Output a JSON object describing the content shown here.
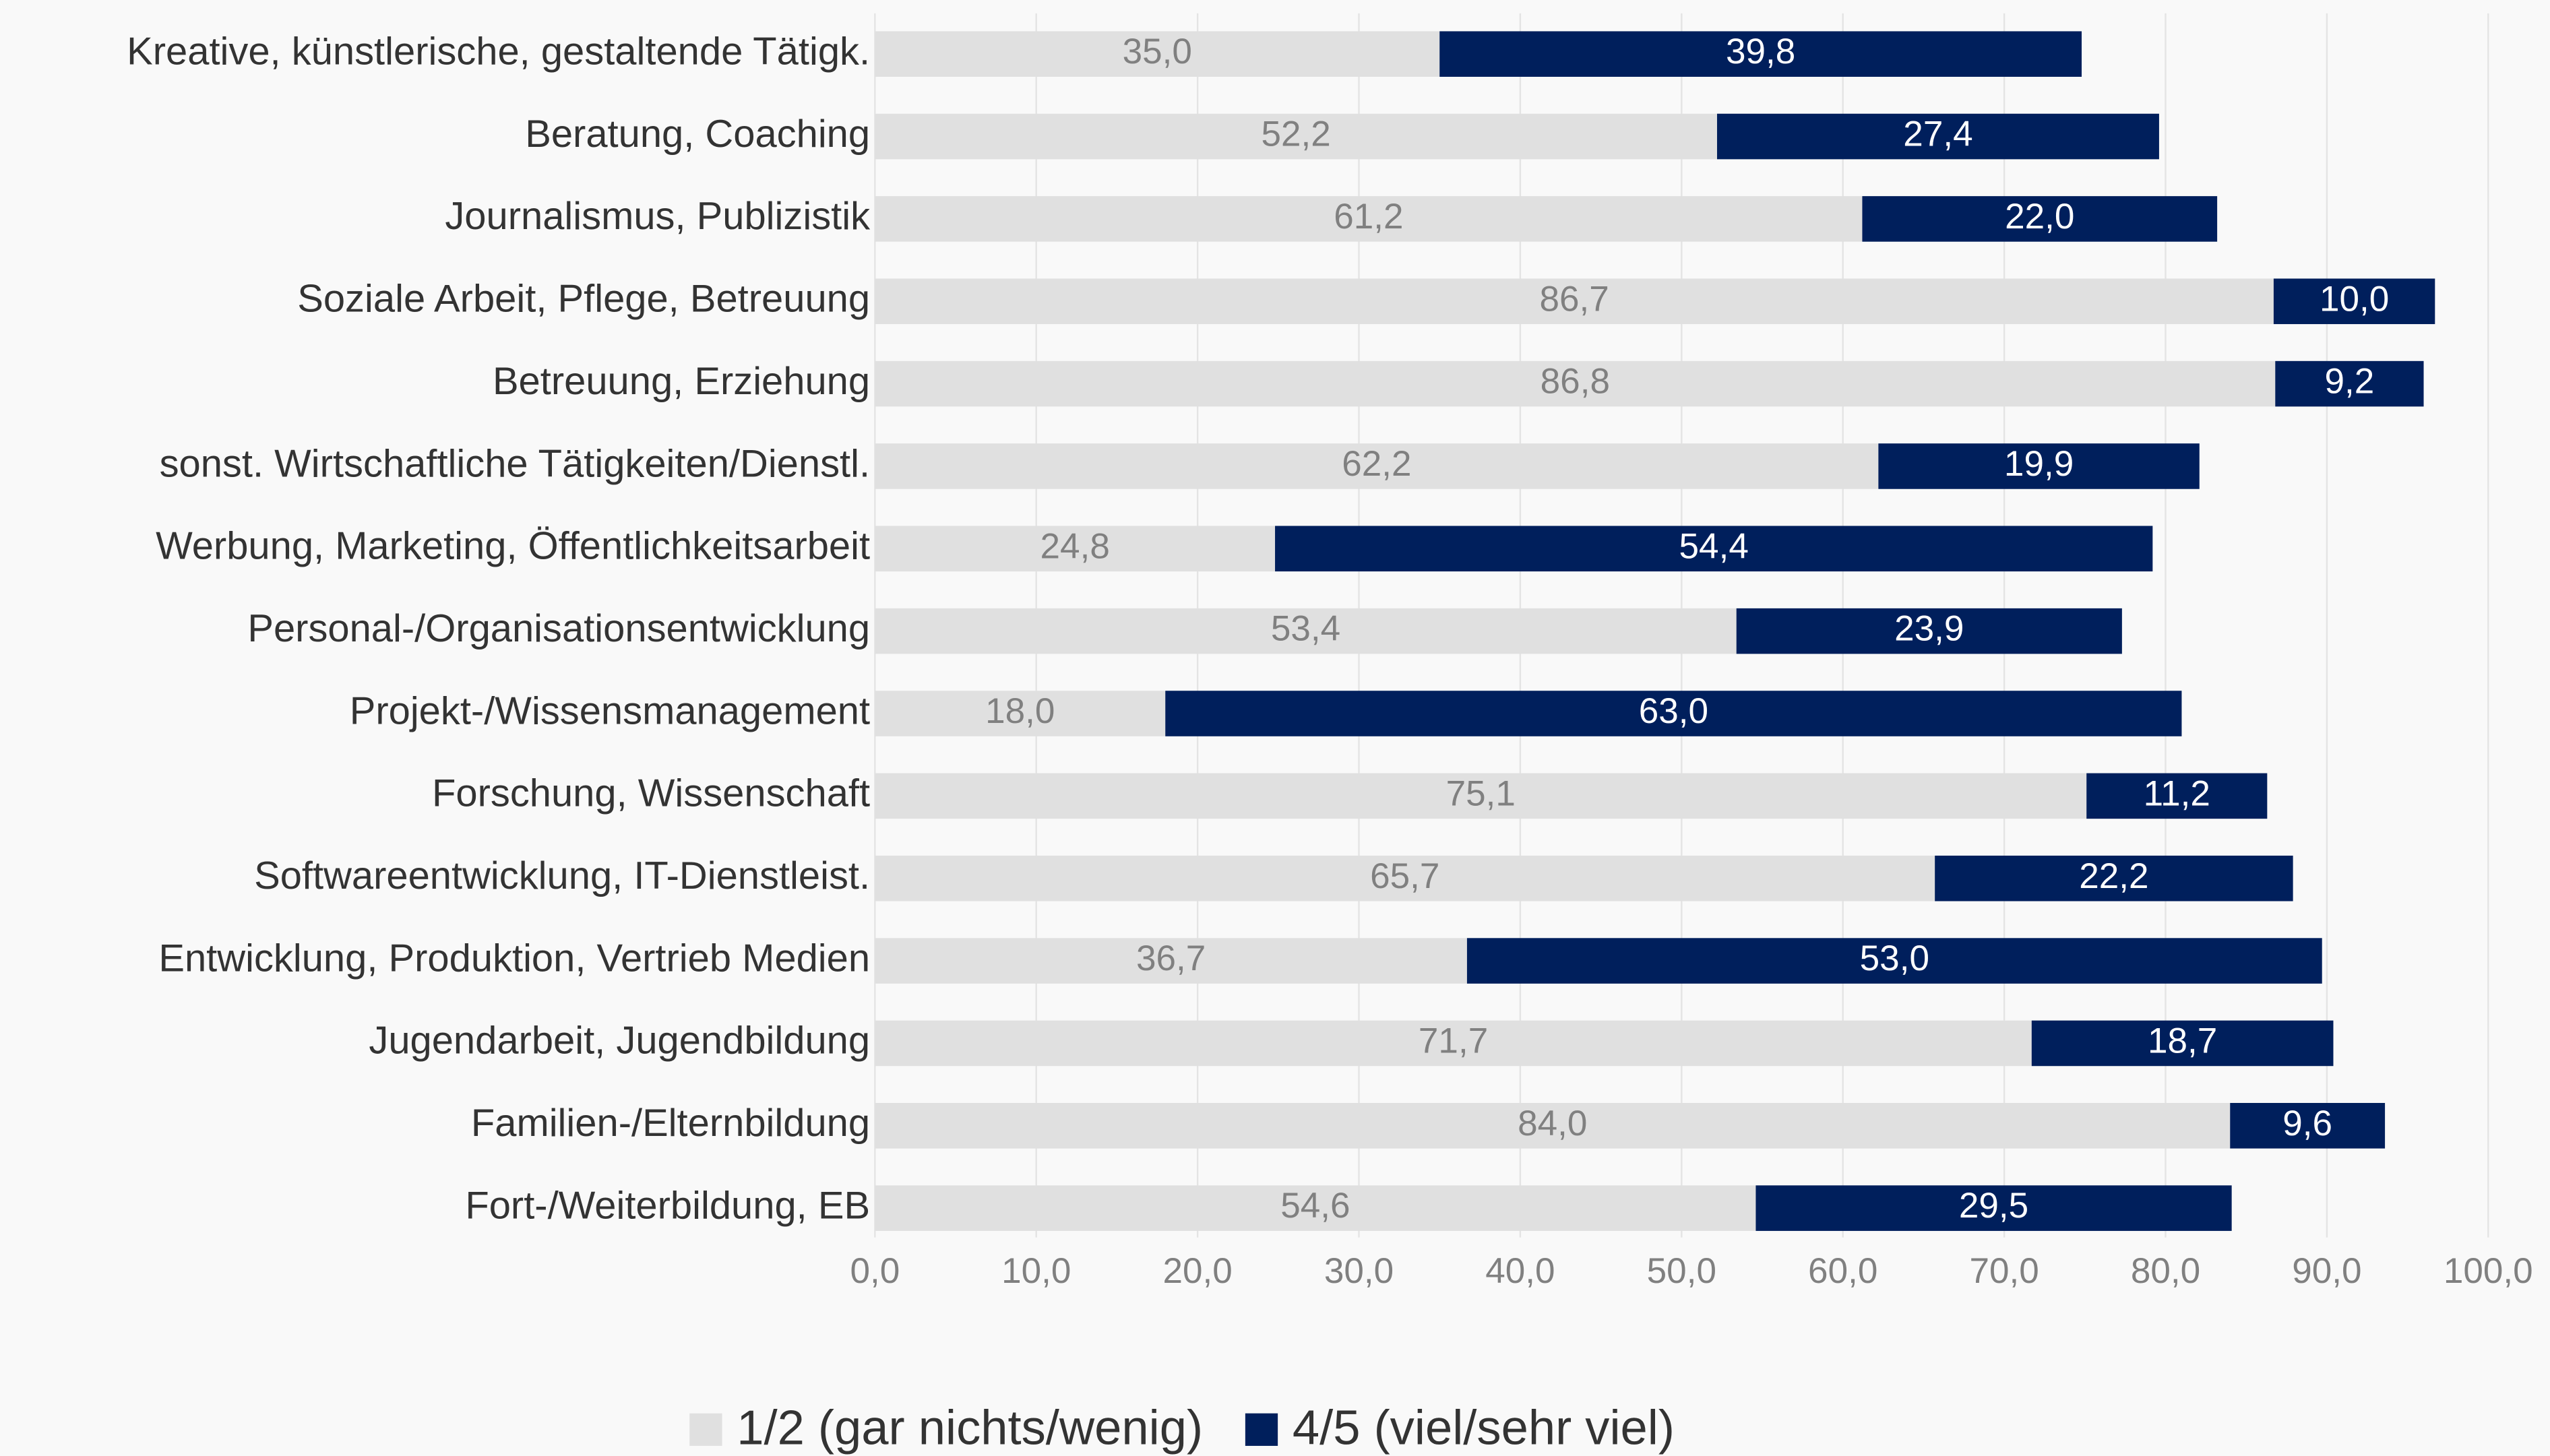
{
  "chart_data": {
    "type": "stacked_barh",
    "categories": [
      "Kreative, künstlerische, gestaltende Tätigk.",
      "Beratung, Coaching",
      "Journalismus, Publizistik",
      "Soziale Arbeit, Pflege, Betreuung",
      "Betreuung, Erziehung",
      "sonst. Wirtschaftliche Tätigkeiten/Dienstl.",
      "Werbung, Marketing, Öffentlichkeitsarbeit",
      "Personal-/Organisationsentwicklung",
      "Projekt-/Wissensmanagement",
      "Forschung, Wissenschaft",
      "Softwareentwicklung, IT-Dienstleist.",
      "Entwicklung, Produktion, Vertrieb Medien",
      "Jugendarbeit, Jugendbildung",
      "Familien-/Elternbildung",
      "Fort-/Weiterbildung, EB"
    ],
    "series": [
      {
        "name": "1/2 (gar nichts/wenig)",
        "color": "#e0e0e0",
        "values": [
          35.0,
          52.2,
          61.2,
          86.7,
          86.8,
          62.2,
          24.8,
          53.4,
          18.0,
          75.1,
          65.7,
          36.7,
          71.7,
          84.0,
          54.6
        ],
        "value_labels": [
          "35,0",
          "52,2",
          "61,2",
          "86,7",
          "86,8",
          "62,2",
          "24,8",
          "53,4",
          "18,0",
          "75,1",
          "65,7",
          "36,7",
          "71,7",
          "84,0",
          "54,6"
        ]
      },
      {
        "name": "4/5 (viel/sehr viel)",
        "color": "#001f5c",
        "values": [
          39.8,
          27.4,
          22.0,
          10.0,
          9.2,
          19.9,
          54.4,
          23.9,
          63.0,
          11.2,
          22.2,
          53.0,
          18.7,
          9.6,
          29.5
        ],
        "value_labels": [
          "39,8",
          "27,4",
          "22,0",
          "10,0",
          "9,2",
          "19,9",
          "54,4",
          "23,9",
          "63,0",
          "11,2",
          "22,2",
          "53,0",
          "18,7",
          "9,6",
          "29,5"
        ]
      }
    ],
    "xlim": [
      0,
      100
    ],
    "xticks": [
      {
        "value": 0,
        "label": "0,0"
      },
      {
        "value": 10,
        "label": "10,0"
      },
      {
        "value": 20,
        "label": "20,0"
      },
      {
        "value": 30,
        "label": "30,0"
      },
      {
        "value": 40,
        "label": "40,0"
      },
      {
        "value": 50,
        "label": "50,0"
      },
      {
        "value": 60,
        "label": "60,0"
      },
      {
        "value": 70,
        "label": "70,0"
      },
      {
        "value": 80,
        "label": "80,0"
      },
      {
        "value": 90,
        "label": "90,0"
      },
      {
        "value": 100,
        "label": "100,0"
      }
    ],
    "grid": true,
    "legend": "bottom"
  }
}
